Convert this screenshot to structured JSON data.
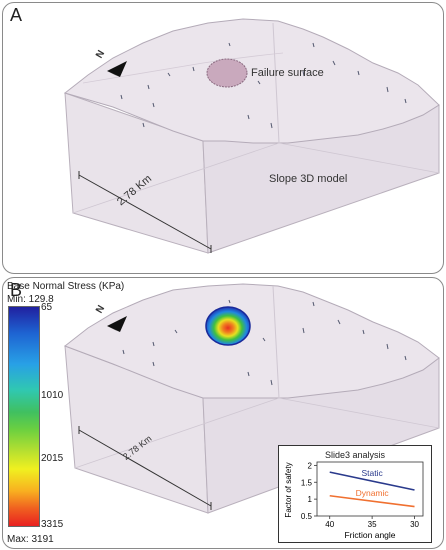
{
  "panel_a": {
    "letter": "A",
    "failure_label": "Failure surface",
    "model_label": "Slope 3D model",
    "scale_label": "2.78 Km",
    "north_label": "N"
  },
  "panel_b": {
    "letter": "B",
    "scale_label": "2.78 Km",
    "north_label": "N",
    "colorbar": {
      "title": "Base Normal Stress (KPa)",
      "min_label": "Min: 129.8",
      "max_label": "Max: 3191",
      "ticks": [
        "65",
        "1010",
        "2015",
        "3315"
      ]
    },
    "inset": {
      "title": "Slide3 analysis",
      "chart_data": {
        "type": "line",
        "title": "Slide3 analysis",
        "xlabel": "Friction angle",
        "ylabel": "Factor of safety",
        "x": [
          40,
          30
        ],
        "xlim": [
          41.5,
          29
        ],
        "ylim": [
          0.5,
          2.1
        ],
        "x_ticks": [
          "40",
          "35",
          "30"
        ],
        "y_ticks": [
          "0.5",
          "1",
          "1.5",
          "2"
        ],
        "series": [
          {
            "name": "Static",
            "values": [
              1.8,
              1.27
            ],
            "color": "#2a3a8c"
          },
          {
            "name": "Dynamic",
            "values": [
              1.1,
              0.78
            ],
            "color": "#f07030"
          }
        ]
      }
    }
  },
  "colors": {
    "model_fill": "#ece6ec",
    "model_edge": "#b8aebb",
    "failure_fill": "#c8a8bc"
  }
}
